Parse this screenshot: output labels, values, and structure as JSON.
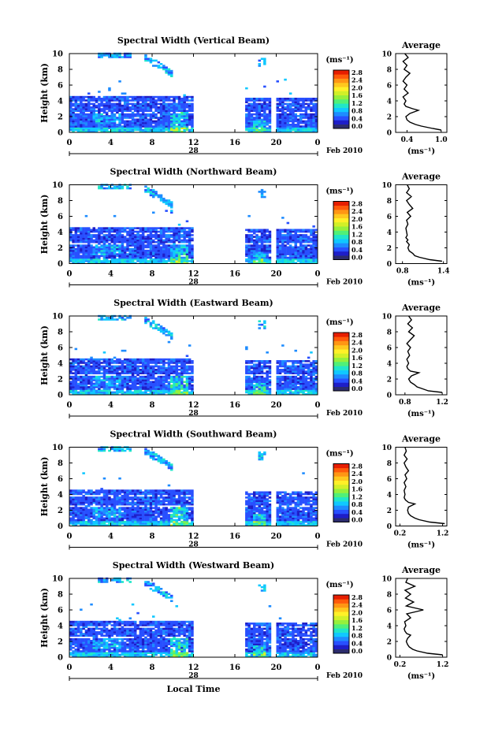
{
  "figure": {
    "xlabel": "Local Time",
    "date_day": "28",
    "date_month_year": "Feb 2010",
    "ylabel": "Height (km)",
    "colorbar_unit_label": "(ms⁻¹)",
    "profile_title": "Average",
    "profile_xlabel": "(ms⁻¹)",
    "colorbar_ticks": [
      "0.0",
      "0.4",
      "0.8",
      "1.2",
      "1.6",
      "2.0",
      "2.4",
      "2.8"
    ],
    "colormap": [
      "#2c2c6e",
      "#1e1ec8",
      "#2850ff",
      "#1e8cff",
      "#10c8ff",
      "#20e6c8",
      "#50f078",
      "#96f03c",
      "#d2f028",
      "#fff028",
      "#ffc81e",
      "#ff9614",
      "#ff5a0a",
      "#e61e00"
    ]
  },
  "chart_data": [
    {
      "type": "heatmap",
      "title": "Spectral Width (Vertical Beam)",
      "x_ticks": [
        "0",
        "4",
        "8",
        "12",
        "16",
        "20",
        "0"
      ],
      "xlim": [
        0,
        24
      ],
      "y_ticks": [
        "0",
        "2",
        "4",
        "6",
        "8",
        "10"
      ],
      "ylim": [
        0,
        10
      ],
      "ylabel": "Height (km)",
      "colorbar_range": [
        0,
        3.0
      ],
      "data_gap_hours": [
        12,
        17
      ],
      "profile": {
        "title": "Average",
        "x_ticks": [
          "0.4",
          "1.0"
        ],
        "xlim": [
          0.2,
          1.1
        ],
        "heights": [
          0.3,
          0.5,
          0.8,
          1.0,
          1.3,
          1.6,
          2.0,
          2.4,
          2.8,
          3.0,
          3.3,
          3.6,
          4.0,
          4.5,
          5.0,
          5.5,
          6.0,
          6.5,
          7.0,
          7.5,
          8.0,
          8.5,
          9.0,
          9.5,
          10.0
        ],
        "values": [
          1.0,
          0.85,
          0.65,
          0.55,
          0.45,
          0.4,
          0.38,
          0.45,
          0.6,
          0.5,
          0.38,
          0.35,
          0.38,
          0.33,
          0.42,
          0.35,
          0.4,
          0.33,
          0.38,
          0.45,
          0.35,
          0.4,
          0.33,
          0.42,
          0.36
        ]
      }
    },
    {
      "type": "heatmap",
      "title": "Spectral Width (Northward Beam)",
      "x_ticks": [
        "0",
        "4",
        "8",
        "12",
        "16",
        "20",
        "0"
      ],
      "xlim": [
        0,
        24
      ],
      "y_ticks": [
        "0",
        "2",
        "4",
        "6",
        "8",
        "10"
      ],
      "ylim": [
        0,
        10
      ],
      "ylabel": "Height (km)",
      "colorbar_range": [
        0,
        3.0
      ],
      "data_gap_hours": [
        12,
        17
      ],
      "profile": {
        "title": "Average",
        "x_ticks": [
          "0.8",
          "1.4"
        ],
        "xlim": [
          0.7,
          1.45
        ],
        "heights": [
          0.3,
          0.5,
          0.8,
          1.0,
          1.3,
          1.6,
          2.0,
          2.4,
          2.8,
          3.0,
          3.3,
          3.6,
          4.0,
          4.5,
          5.0,
          5.5,
          6.0,
          6.5,
          7.0,
          7.5,
          8.0,
          8.5,
          9.0,
          9.5,
          10.0
        ],
        "values": [
          1.38,
          1.2,
          1.05,
          0.98,
          0.95,
          0.9,
          0.88,
          0.9,
          0.86,
          0.88,
          0.85,
          0.87,
          0.86,
          0.85,
          0.88,
          0.86,
          0.92,
          0.87,
          0.95,
          0.9,
          0.86,
          0.93,
          0.86,
          0.9,
          0.87
        ]
      }
    },
    {
      "type": "heatmap",
      "title": "Spectral Width (Eastward Beam)",
      "x_ticks": [
        "0",
        "4",
        "8",
        "12",
        "16",
        "20",
        "0"
      ],
      "xlim": [
        0,
        24
      ],
      "y_ticks": [
        "0",
        "2",
        "4",
        "6",
        "8",
        "10"
      ],
      "ylim": [
        0,
        10
      ],
      "ylabel": "Height (km)",
      "colorbar_range": [
        0,
        3.0
      ],
      "data_gap_hours": [
        12,
        17
      ],
      "profile": {
        "title": "Average",
        "x_ticks": [
          "0.8",
          "1.2"
        ],
        "xlim": [
          0.7,
          1.25
        ],
        "heights": [
          0.3,
          0.5,
          0.8,
          1.0,
          1.3,
          1.6,
          2.0,
          2.4,
          2.8,
          3.0,
          3.3,
          3.6,
          4.0,
          4.5,
          5.0,
          5.5,
          6.0,
          6.5,
          7.0,
          7.5,
          8.0,
          8.5,
          9.0,
          9.5,
          10.0
        ],
        "values": [
          1.2,
          1.05,
          0.98,
          0.93,
          0.9,
          0.86,
          0.84,
          0.87,
          0.95,
          0.86,
          0.83,
          0.82,
          0.84,
          0.82,
          0.85,
          0.83,
          0.86,
          0.82,
          0.86,
          0.9,
          0.84,
          0.88,
          0.83,
          0.87,
          0.84
        ]
      }
    },
    {
      "type": "heatmap",
      "title": "Spectral Width (Southward Beam)",
      "x_ticks": [
        "0",
        "4",
        "8",
        "12",
        "16",
        "20",
        "0"
      ],
      "xlim": [
        0,
        24
      ],
      "y_ticks": [
        "0",
        "2",
        "4",
        "6",
        "8",
        "10"
      ],
      "ylim": [
        0,
        10
      ],
      "ylabel": "Height (km)",
      "colorbar_range": [
        0,
        3.0
      ],
      "data_gap_hours": [
        12,
        17
      ],
      "profile": {
        "title": "Average",
        "x_ticks": [
          "0.2",
          "1.2"
        ],
        "xlim": [
          0.1,
          1.3
        ],
        "heights": [
          0.3,
          0.5,
          0.8,
          1.0,
          1.3,
          1.6,
          2.0,
          2.4,
          2.8,
          3.0,
          3.3,
          3.6,
          4.0,
          4.5,
          5.0,
          5.5,
          6.0,
          6.5,
          7.0,
          7.5,
          8.0,
          8.5,
          9.0,
          9.5,
          10.0
        ],
        "values": [
          1.25,
          0.9,
          0.65,
          0.55,
          0.45,
          0.4,
          0.38,
          0.4,
          0.55,
          0.4,
          0.33,
          0.3,
          0.32,
          0.3,
          0.34,
          0.3,
          0.36,
          0.32,
          0.4,
          0.34,
          0.3,
          0.37,
          0.3,
          0.35,
          0.32
        ]
      }
    },
    {
      "type": "heatmap",
      "title": "Spectral Width (Westward Beam)",
      "x_ticks": [
        "0",
        "4",
        "8",
        "12",
        "16",
        "20",
        "0"
      ],
      "xlim": [
        0,
        24
      ],
      "y_ticks": [
        "0",
        "2",
        "4",
        "6",
        "8",
        "10"
      ],
      "ylim": [
        0,
        10
      ],
      "ylabel": "Height (km)",
      "colorbar_range": [
        0,
        3.0
      ],
      "data_gap_hours": [
        12,
        17
      ],
      "profile": {
        "title": "Average",
        "x_ticks": [
          "0.2",
          "1.2"
        ],
        "xlim": [
          0.1,
          1.3
        ],
        "heights": [
          0.3,
          0.5,
          0.8,
          1.0,
          1.3,
          1.6,
          2.0,
          2.4,
          2.8,
          3.0,
          3.3,
          3.6,
          4.0,
          4.5,
          5.0,
          5.5,
          6.0,
          6.5,
          7.0,
          7.5,
          8.0,
          8.5,
          9.0,
          9.5,
          10.0
        ],
        "values": [
          1.2,
          0.85,
          0.6,
          0.5,
          0.42,
          0.38,
          0.35,
          0.38,
          0.45,
          0.36,
          0.32,
          0.3,
          0.34,
          0.31,
          0.45,
          0.36,
          0.75,
          0.35,
          0.52,
          0.33,
          0.45,
          0.32,
          0.55,
          0.34,
          0.38
        ]
      }
    }
  ]
}
